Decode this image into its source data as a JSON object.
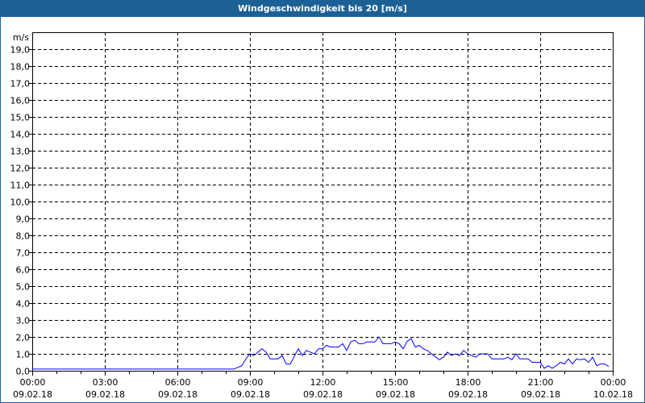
{
  "window": {
    "title": "Windgeschwindigkeit bis 20 [m/s]"
  },
  "chart_data": {
    "type": "line",
    "title": "Windgeschwindigkeit bis 20 [m/s]",
    "ylabel": "m/s",
    "ylim": [
      0,
      20
    ],
    "xlim": [
      "09.02.18 00:00",
      "10.02.18 00:00"
    ],
    "grid": true,
    "line_color": "#0000ff",
    "y_ticks": [
      "0,0",
      "1,0",
      "2,0",
      "3,0",
      "4,0",
      "5,0",
      "6,0",
      "7,0",
      "8,0",
      "9,0",
      "10,0",
      "11,0",
      "12,0",
      "13,0",
      "14,0",
      "15,0",
      "16,0",
      "17,0",
      "18,0",
      "19,0"
    ],
    "x_ticks": [
      {
        "time": "00:00",
        "date": "09.02.18"
      },
      {
        "time": "03:00",
        "date": "09.02.18"
      },
      {
        "time": "06:00",
        "date": "09.02.18"
      },
      {
        "time": "09:00",
        "date": "09.02.18"
      },
      {
        "time": "12:00",
        "date": "09.02.18"
      },
      {
        "time": "15:00",
        "date": "09.02.18"
      },
      {
        "time": "18:00",
        "date": "09.02.18"
      },
      {
        "time": "21:00",
        "date": "09.02.18"
      },
      {
        "time": "00:00",
        "date": "10.02.18"
      }
    ],
    "series": [
      {
        "points": [
          [
            "00:00",
            0.1
          ],
          [
            "08:10",
            0.1
          ],
          [
            "08:20",
            0.1
          ],
          [
            "08:40",
            0.3
          ],
          [
            "08:50",
            0.7
          ],
          [
            "09:00",
            1.0
          ],
          [
            "09:10",
            0.9
          ],
          [
            "09:30",
            1.3
          ],
          [
            "09:40",
            1.1
          ],
          [
            "09:50",
            0.7
          ],
          [
            "10:10",
            0.7
          ],
          [
            "10:20",
            0.9
          ],
          [
            "10:30",
            0.4
          ],
          [
            "10:40",
            0.4
          ],
          [
            "11:00",
            1.3
          ],
          [
            "11:10",
            0.9
          ],
          [
            "11:20",
            1.2
          ],
          [
            "11:30",
            1.1
          ],
          [
            "11:40",
            1.0
          ],
          [
            "11:50",
            1.3
          ],
          [
            "12:00",
            1.3
          ],
          [
            "12:10",
            1.5
          ],
          [
            "12:20",
            1.4
          ],
          [
            "12:40",
            1.4
          ],
          [
            "12:50",
            1.6
          ],
          [
            "13:00",
            1.2
          ],
          [
            "13:10",
            1.7
          ],
          [
            "13:20",
            1.8
          ],
          [
            "13:30",
            1.6
          ],
          [
            "13:40",
            1.6
          ],
          [
            "13:50",
            1.7
          ],
          [
            "14:10",
            1.7
          ],
          [
            "14:20",
            2.0
          ],
          [
            "14:30",
            1.6
          ],
          [
            "14:50",
            1.6
          ],
          [
            "15:00",
            1.7
          ],
          [
            "15:10",
            1.6
          ],
          [
            "15:20",
            1.3
          ],
          [
            "15:30",
            1.75
          ],
          [
            "15:40",
            1.9
          ],
          [
            "15:50",
            1.4
          ],
          [
            "16:00",
            1.5
          ],
          [
            "16:10",
            1.3
          ],
          [
            "16:20",
            1.2
          ],
          [
            "16:30",
            1.0
          ],
          [
            "16:50",
            0.65
          ],
          [
            "17:00",
            0.8
          ],
          [
            "17:10",
            1.1
          ],
          [
            "17:20",
            0.9
          ],
          [
            "17:30",
            1.0
          ],
          [
            "17:40",
            0.9
          ],
          [
            "17:50",
            1.2
          ],
          [
            "18:00",
            1.0
          ],
          [
            "18:20",
            0.8
          ],
          [
            "18:30",
            1.0
          ],
          [
            "18:50",
            1.0
          ],
          [
            "19:00",
            0.7
          ],
          [
            "19:30",
            0.7
          ],
          [
            "19:40",
            0.8
          ],
          [
            "19:50",
            0.65
          ],
          [
            "20:00",
            1.0
          ],
          [
            "20:10",
            0.7
          ],
          [
            "20:30",
            0.7
          ],
          [
            "20:40",
            0.5
          ],
          [
            "21:00",
            0.5
          ],
          [
            "21:10",
            0.15
          ],
          [
            "21:20",
            0.3
          ],
          [
            "21:30",
            0.15
          ],
          [
            "21:40",
            0.3
          ],
          [
            "21:50",
            0.5
          ],
          [
            "22:00",
            0.4
          ],
          [
            "22:10",
            0.7
          ],
          [
            "22:20",
            0.4
          ],
          [
            "22:30",
            0.7
          ],
          [
            "22:40",
            0.65
          ],
          [
            "22:50",
            0.7
          ],
          [
            "23:00",
            0.5
          ],
          [
            "23:10",
            0.8
          ],
          [
            "23:20",
            0.3
          ],
          [
            "23:30",
            0.4
          ],
          [
            "23:40",
            0.4
          ],
          [
            "23:50",
            0.25
          ]
        ]
      }
    ]
  }
}
